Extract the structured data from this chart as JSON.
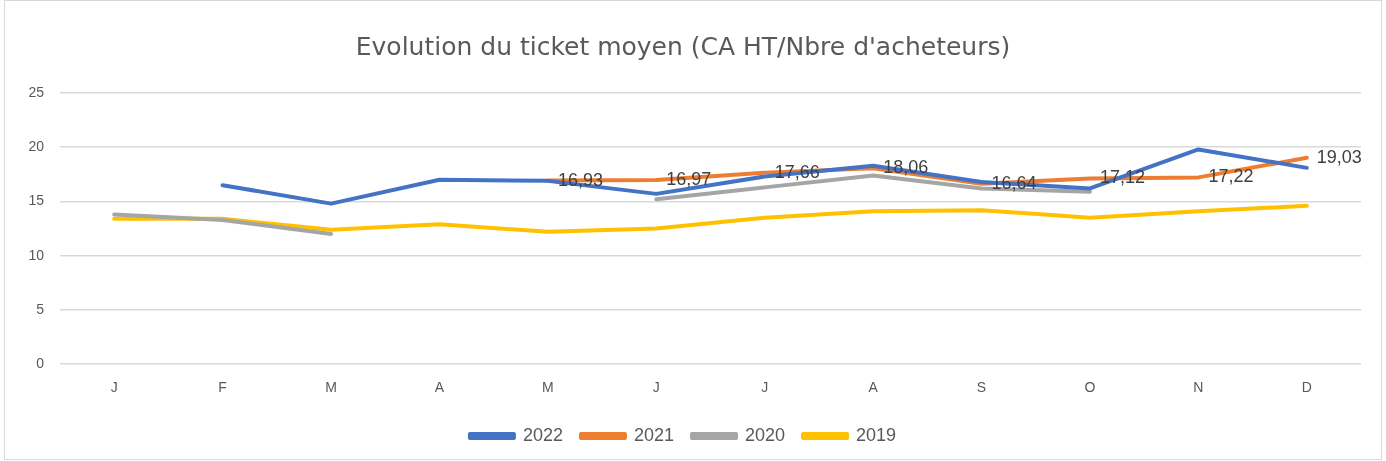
{
  "chart_data": {
    "type": "line",
    "title": "Evolution du ticket moyen (CA HT/Nbre d'acheteurs)",
    "categories": [
      "J",
      "F",
      "M",
      "A",
      "M",
      "J",
      "J",
      "A",
      "S",
      "O",
      "N",
      "D"
    ],
    "ylim": [
      0,
      25
    ],
    "yticks": [
      0,
      5,
      10,
      15,
      20,
      25
    ],
    "grid": "y",
    "legend": "bottom",
    "marker": "none",
    "line_style": "solid",
    "series": [
      {
        "name": "2022",
        "color": "#4472c4",
        "values": [
          null,
          16.5,
          14.8,
          17.0,
          16.9,
          15.7,
          17.3,
          18.3,
          16.8,
          16.2,
          19.8,
          18.1
        ]
      },
      {
        "name": "2021",
        "color": "#ed7d31",
        "values": [
          null,
          null,
          null,
          null,
          16.93,
          16.97,
          17.66,
          18.06,
          16.64,
          17.12,
          17.22,
          19.03
        ],
        "value_labels": [
          null,
          null,
          null,
          null,
          "16,93",
          "16,97",
          "17,66",
          "18,06",
          "16,64",
          "17,12",
          "17,22",
          "19,03"
        ]
      },
      {
        "name": "2020",
        "color": "#a5a5a5",
        "values": [
          13.8,
          13.3,
          12.0,
          null,
          null,
          15.2,
          16.3,
          17.4,
          16.2,
          15.9,
          null,
          null
        ]
      },
      {
        "name": "2019",
        "color": "#ffc000",
        "values": [
          13.4,
          13.4,
          12.4,
          12.9,
          12.2,
          12.5,
          13.5,
          14.1,
          14.2,
          13.5,
          14.1,
          14.6
        ]
      }
    ]
  }
}
